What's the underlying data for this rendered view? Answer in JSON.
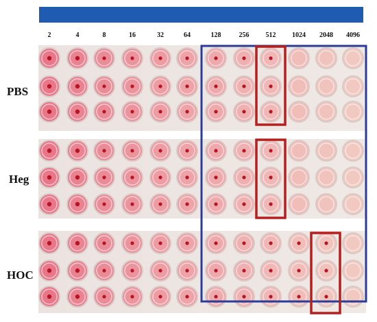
{
  "dilution_labels": [
    "2",
    "4",
    "8",
    "16",
    "32",
    "64",
    "128",
    "256",
    "512",
    "1024",
    "2048",
    "4096"
  ],
  "row_labels": [
    "PBS",
    "Heg",
    "HOC"
  ],
  "groups": [
    {
      "name": "PBS",
      "rows": 3,
      "titer_column_label": "512"
    },
    {
      "name": "Heg",
      "rows": 3,
      "titer_column_label": "512"
    },
    {
      "name": "HOC",
      "rows": 3,
      "titer_column_label": "2048"
    }
  ],
  "colors": {
    "gradient_bar": "#1f5bb0",
    "outline_blue": "#2a3c97",
    "outline_red": "#b3201f",
    "well_pink_strong": "#e8778a",
    "well_pink_pale": "#f1c9c1",
    "button_red": "#b71524",
    "plate_background": "#e9e1de"
  }
}
